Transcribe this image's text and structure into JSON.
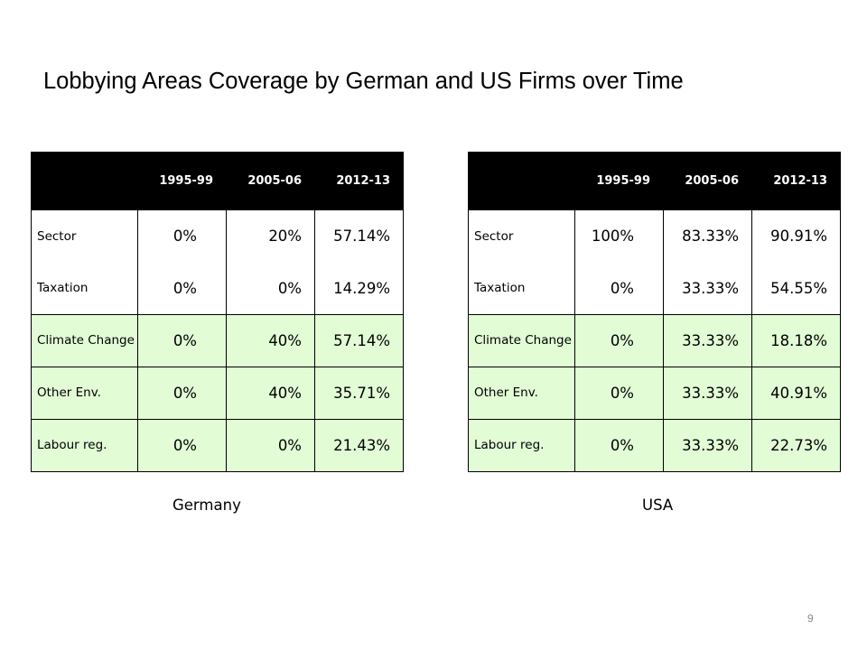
{
  "slide": {
    "title": "Lobbying Areas Coverage by German and US Firms over Time",
    "page_number": "9"
  },
  "colors": {
    "header_bg": "#000000",
    "header_text": "#ffffff",
    "highlight_row": "#e2fcd6"
  },
  "germany": {
    "caption": "Germany",
    "headers": [
      "",
      "1995-99",
      "2005-06",
      "2012-13"
    ],
    "rows": [
      {
        "label": "Sector",
        "values": [
          "0%",
          "20%",
          "57.14%"
        ]
      },
      {
        "label": "Taxation",
        "values": [
          "0%",
          "0%",
          "14.29%"
        ]
      },
      {
        "label": "Climate Change",
        "values": [
          "0%",
          "40%",
          "57.14%"
        ]
      },
      {
        "label": "Other Env.",
        "values": [
          "0%",
          "40%",
          "35.71%"
        ]
      },
      {
        "label": "Labour reg.",
        "values": [
          "0%",
          "0%",
          "21.43%"
        ]
      }
    ]
  },
  "usa": {
    "caption": "USA",
    "headers": [
      "",
      "1995-99",
      "2005-06",
      "2012-13"
    ],
    "rows": [
      {
        "label": "Sector",
        "values": [
          "100%",
          "83.33%",
          "90.91%"
        ]
      },
      {
        "label": "Taxation",
        "values": [
          "0%",
          "33.33%",
          "54.55%"
        ]
      },
      {
        "label": "Climate Change",
        "values": [
          "0%",
          "33.33%",
          "18.18%"
        ]
      },
      {
        "label": "Other Env.",
        "values": [
          "0%",
          "33.33%",
          "40.91%"
        ]
      },
      {
        "label": "Labour reg.",
        "values": [
          "0%",
          "33.33%",
          "22.73%"
        ]
      }
    ]
  }
}
